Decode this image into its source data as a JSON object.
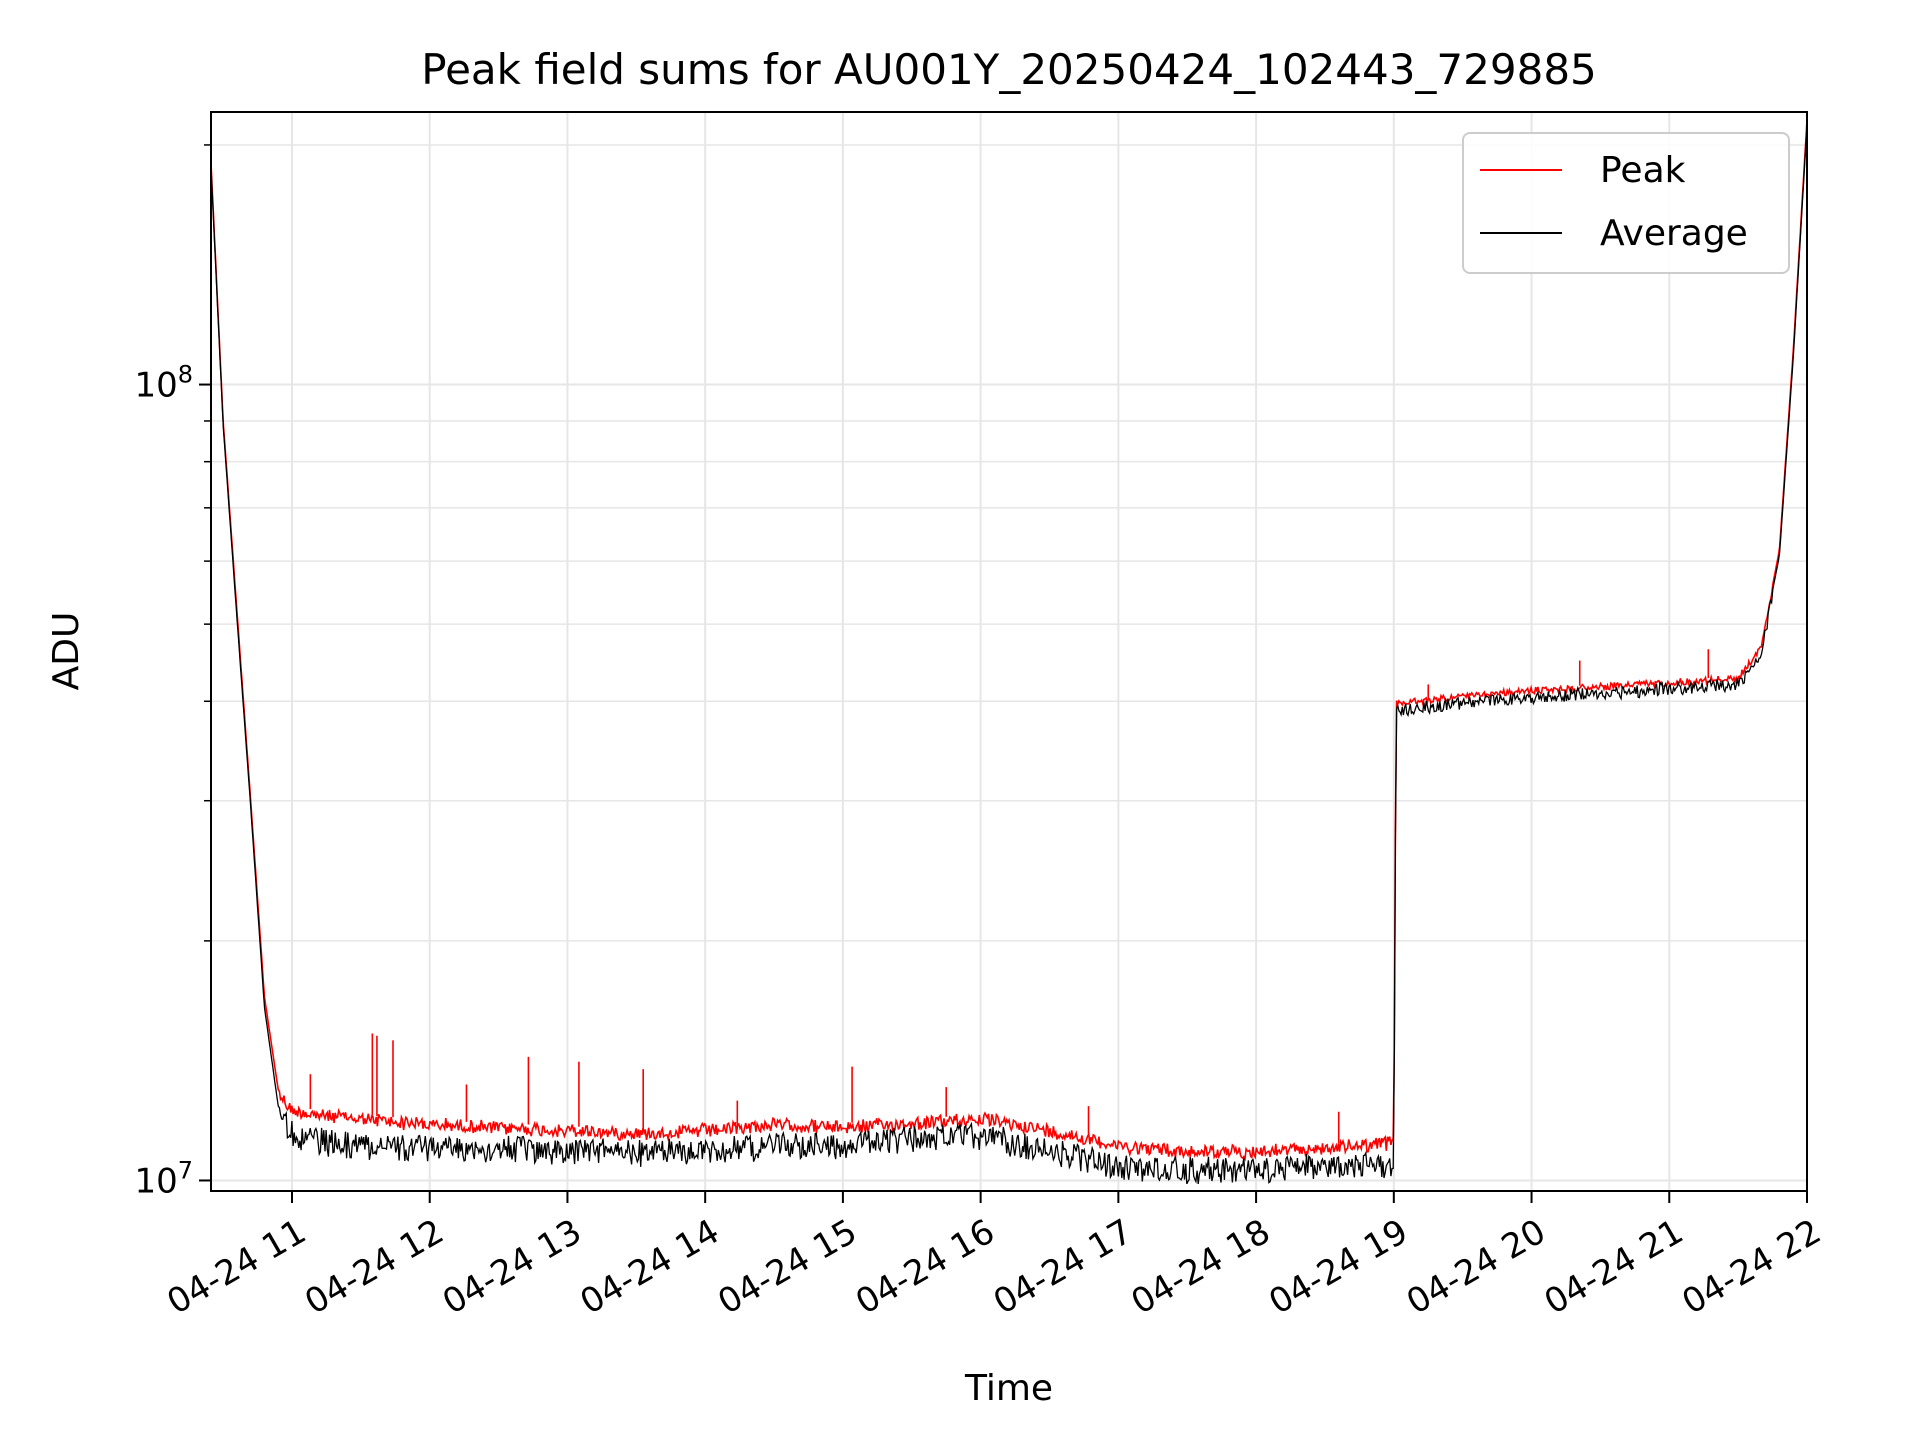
{
  "chart_data": {
    "type": "line",
    "title": "Peak field sums for AU001Y_20250424_102443_729885",
    "xlabel": "Time",
    "ylabel": "ADU",
    "yscale": "log",
    "xlim": [
      "2025-04-24 10:24:43",
      "2025-04-24 22:00:00"
    ],
    "ylim": [
      9700000,
      220000000
    ],
    "x_ticks": [
      {
        "t": "2025-04-24 11:00:00",
        "label": "04-24 11"
      },
      {
        "t": "2025-04-24 12:00:00",
        "label": "04-24 12"
      },
      {
        "t": "2025-04-24 13:00:00",
        "label": "04-24 13"
      },
      {
        "t": "2025-04-24 14:00:00",
        "label": "04-24 14"
      },
      {
        "t": "2025-04-24 15:00:00",
        "label": "04-24 15"
      },
      {
        "t": "2025-04-24 16:00:00",
        "label": "04-24 16"
      },
      {
        "t": "2025-04-24 17:00:00",
        "label": "04-24 17"
      },
      {
        "t": "2025-04-24 18:00:00",
        "label": "04-24 18"
      },
      {
        "t": "2025-04-24 19:00:00",
        "label": "04-24 19"
      },
      {
        "t": "2025-04-24 20:00:00",
        "label": "04-24 20"
      },
      {
        "t": "2025-04-24 21:00:00",
        "label": "04-24 21"
      },
      {
        "t": "2025-04-24 22:00:00",
        "label": "04-24 22"
      }
    ],
    "y_ticks": [
      {
        "value": 10000000,
        "base": "10",
        "exp": "7"
      },
      {
        "value": 100000000,
        "base": "10",
        "exp": "8"
      }
    ],
    "grid": true,
    "legend_position": "top-right",
    "series": [
      {
        "name": "Peak",
        "color": "#ff0000",
        "x": [
          "2025-04-24 10:24:43",
          "2025-04-24 10:30:00",
          "2025-04-24 10:36:00",
          "2025-04-24 10:42:00",
          "2025-04-24 10:48:00",
          "2025-04-24 10:54:00",
          "2025-04-24 11:00:00",
          "2025-04-24 11:15:00",
          "2025-04-24 11:30:00",
          "2025-04-24 12:00:00",
          "2025-04-24 12:30:00",
          "2025-04-24 13:00:00",
          "2025-04-24 13:30:00",
          "2025-04-24 14:00:00",
          "2025-04-24 14:30:00",
          "2025-04-24 15:00:00",
          "2025-04-24 15:30:00",
          "2025-04-24 16:00:00",
          "2025-04-24 16:30:00",
          "2025-04-24 17:00:00",
          "2025-04-24 17:30:00",
          "2025-04-24 18:00:00",
          "2025-04-24 18:30:00",
          "2025-04-24 19:00:00",
          "2025-04-24 19:01:00",
          "2025-04-24 19:30:00",
          "2025-04-24 20:00:00",
          "2025-04-24 20:30:00",
          "2025-04-24 21:00:00",
          "2025-04-24 21:30:00",
          "2025-04-24 21:40:00",
          "2025-04-24 21:48:00",
          "2025-04-24 21:54:00",
          "2025-04-24 22:00:00"
        ],
        "y": [
          190000000,
          90000000,
          52000000,
          30000000,
          17000000,
          13000000,
          12400000,
          12200000,
          12100000,
          11900000,
          11800000,
          11700000,
          11600000,
          11700000,
          11900000,
          11800000,
          11950000,
          12100000,
          11700000,
          11200000,
          11000000,
          11000000,
          11100000,
          11300000,
          40000000,
          40800000,
          41500000,
          42000000,
          42500000,
          43000000,
          47000000,
          62000000,
          110000000,
          215000000
        ]
      },
      {
        "name": "Average",
        "color": "#000000",
        "x": [
          "2025-04-24 10:24:43",
          "2025-04-24 10:30:00",
          "2025-04-24 10:36:00",
          "2025-04-24 10:42:00",
          "2025-04-24 10:48:00",
          "2025-04-24 10:54:00",
          "2025-04-24 11:00:00",
          "2025-04-24 11:15:00",
          "2025-04-24 11:30:00",
          "2025-04-24 12:00:00",
          "2025-04-24 12:30:00",
          "2025-04-24 13:00:00",
          "2025-04-24 13:30:00",
          "2025-04-24 14:00:00",
          "2025-04-24 14:30:00",
          "2025-04-24 15:00:00",
          "2025-04-24 15:30:00",
          "2025-04-24 16:00:00",
          "2025-04-24 16:30:00",
          "2025-04-24 17:00:00",
          "2025-04-24 17:30:00",
          "2025-04-24 18:00:00",
          "2025-04-24 18:30:00",
          "2025-04-24 19:00:00",
          "2025-04-24 19:01:00",
          "2025-04-24 19:30:00",
          "2025-04-24 20:00:00",
          "2025-04-24 20:30:00",
          "2025-04-24 21:00:00",
          "2025-04-24 21:30:00",
          "2025-04-24 21:40:00",
          "2025-04-24 21:48:00",
          "2025-04-24 21:54:00",
          "2025-04-24 22:00:00"
        ],
        "y": [
          188000000,
          89000000,
          51000000,
          29500000,
          16500000,
          12400000,
          11800000,
          11500000,
          11400000,
          11300000,
          11250000,
          11200000,
          11150000,
          11200000,
          11400000,
          11400000,
          11600000,
          11700000,
          11200000,
          10700000,
          10600000,
          10600000,
          10700000,
          10800000,
          39500000,
          40300000,
          41000000,
          41500000,
          42000000,
          42500000,
          46500000,
          61000000,
          108000000,
          212000000
        ]
      }
    ],
    "spikes": [
      {
        "series": "Peak",
        "t": "2025-04-24 11:08:00",
        "y": 13600000
      },
      {
        "series": "Peak",
        "t": "2025-04-24 11:35:00",
        "y": 15300000
      },
      {
        "series": "Peak",
        "t": "2025-04-24 11:37:00",
        "y": 15200000
      },
      {
        "series": "Peak",
        "t": "2025-04-24 11:44:00",
        "y": 15000000
      },
      {
        "series": "Peak",
        "t": "2025-04-24 12:16:00",
        "y": 13200000
      },
      {
        "series": "Peak",
        "t": "2025-04-24 12:43:00",
        "y": 14300000
      },
      {
        "series": "Peak",
        "t": "2025-04-24 13:05:00",
        "y": 14100000
      },
      {
        "series": "Peak",
        "t": "2025-04-24 13:33:00",
        "y": 13800000
      },
      {
        "series": "Peak",
        "t": "2025-04-24 14:14:00",
        "y": 12600000
      },
      {
        "series": "Peak",
        "t": "2025-04-24 15:04:00",
        "y": 13900000
      },
      {
        "series": "Peak",
        "t": "2025-04-24 15:45:00",
        "y": 13100000
      },
      {
        "series": "Peak",
        "t": "2025-04-24 16:47:00",
        "y": 12400000
      },
      {
        "series": "Peak",
        "t": "2025-04-24 18:36:00",
        "y": 12200000
      },
      {
        "series": "Peak",
        "t": "2025-04-24 19:15:00",
        "y": 42000000
      },
      {
        "series": "Peak",
        "t": "2025-04-24 20:21:00",
        "y": 45000000
      },
      {
        "series": "Peak",
        "t": "2025-04-24 21:17:00",
        "y": 46500000
      }
    ]
  }
}
